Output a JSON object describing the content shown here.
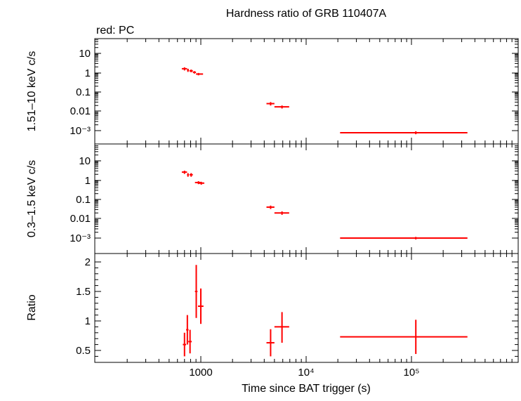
{
  "chart_data": {
    "type": "scatter",
    "title": "Hardness ratio of GRB 110407A",
    "subtitle": "red: PC",
    "xlabel": "Time since BAT trigger (s)",
    "x_scale": "log",
    "xlim": [
      100,
      900000
    ],
    "x_tick_labels": [
      "1000",
      "10⁴",
      "10⁵"
    ],
    "series_color": "#ff0000",
    "panels": [
      {
        "ylabel": "1.51–10 keV c/s",
        "y_scale": "log",
        "ylim": [
          0.00017,
          50
        ],
        "y_tick_labels": [
          "10",
          "1",
          "0.1",
          "0.01",
          "10⁻³"
        ],
        "points": [
          {
            "x": 700,
            "xlo": 660,
            "xhi": 740,
            "y": 1.6,
            "ylo": 1.3,
            "yhi": 1.9
          },
          {
            "x": 755,
            "xlo": 740,
            "xhi": 770,
            "y": 1.35,
            "ylo": 1.1,
            "yhi": 1.6
          },
          {
            "x": 810,
            "xlo": 780,
            "xhi": 840,
            "y": 1.25,
            "ylo": 1.05,
            "yhi": 1.45
          },
          {
            "x": 870,
            "xlo": 840,
            "xhi": 900,
            "y": 1.05,
            "ylo": 0.9,
            "yhi": 1.2
          },
          {
            "x": 950,
            "xlo": 900,
            "xhi": 1050,
            "y": 0.85,
            "ylo": 0.73,
            "yhi": 0.97
          },
          {
            "x": 4600,
            "xlo": 4200,
            "xhi": 5000,
            "y": 0.025,
            "ylo": 0.02,
            "yhi": 0.03
          },
          {
            "x": 5900,
            "xlo": 5000,
            "xhi": 6900,
            "y": 0.017,
            "ylo": 0.014,
            "yhi": 0.02
          },
          {
            "x": 110000,
            "xlo": 21000,
            "xhi": 340000,
            "y": 0.00078,
            "ylo": 0.00065,
            "yhi": 0.00092
          }
        ]
      },
      {
        "ylabel": "0.3–1.5 keV c/s",
        "y_scale": "log",
        "ylim": [
          0.00017,
          30
        ],
        "y_tick_labels": [
          "10",
          "1",
          "0.1",
          "0.01",
          "10⁻³"
        ],
        "points": [
          {
            "x": 700,
            "xlo": 660,
            "xhi": 740,
            "y": 2.6,
            "ylo": 2.1,
            "yhi": 3.1
          },
          {
            "x": 755,
            "xlo": 740,
            "xhi": 770,
            "y": 1.9,
            "ylo": 1.5,
            "yhi": 2.3
          },
          {
            "x": 810,
            "xlo": 780,
            "xhi": 840,
            "y": 1.9,
            "ylo": 1.5,
            "yhi": 2.3
          },
          {
            "x": 950,
            "xlo": 880,
            "xhi": 1010,
            "y": 0.75,
            "ylo": 0.62,
            "yhi": 0.88
          },
          {
            "x": 1010,
            "xlo": 940,
            "xhi": 1080,
            "y": 0.7,
            "ylo": 0.58,
            "yhi": 0.82
          },
          {
            "x": 4600,
            "xlo": 4200,
            "xhi": 5000,
            "y": 0.04,
            "ylo": 0.032,
            "yhi": 0.048
          },
          {
            "x": 5900,
            "xlo": 5000,
            "xhi": 6900,
            "y": 0.02,
            "ylo": 0.016,
            "yhi": 0.024
          },
          {
            "x": 110000,
            "xlo": 21000,
            "xhi": 340000,
            "y": 0.001,
            "ylo": 0.00085,
            "yhi": 0.00115
          }
        ]
      },
      {
        "ylabel": "Ratio",
        "y_scale": "linear",
        "ylim": [
          0.3,
          2.1
        ],
        "y_tick_labels": [
          "2",
          "1.5",
          "1",
          "0.5"
        ],
        "y_tick_values": [
          2,
          1.5,
          1,
          0.5
        ],
        "points": [
          {
            "x": 700,
            "xlo": 675,
            "xhi": 725,
            "y": 0.6,
            "ylo": 0.4,
            "yhi": 0.8
          },
          {
            "x": 745,
            "xlo": 725,
            "xhi": 765,
            "y": 0.85,
            "ylo": 0.6,
            "yhi": 1.1
          },
          {
            "x": 790,
            "xlo": 760,
            "xhi": 820,
            "y": 0.65,
            "ylo": 0.45,
            "yhi": 0.85
          },
          {
            "x": 905,
            "xlo": 880,
            "xhi": 930,
            "y": 1.5,
            "ylo": 1.05,
            "yhi": 1.95
          },
          {
            "x": 1000,
            "xlo": 940,
            "xhi": 1060,
            "y": 1.25,
            "ylo": 0.95,
            "yhi": 1.55
          },
          {
            "x": 4600,
            "xlo": 4200,
            "xhi": 5000,
            "y": 0.63,
            "ylo": 0.4,
            "yhi": 0.86
          },
          {
            "x": 5900,
            "xlo": 5000,
            "xhi": 6900,
            "y": 0.9,
            "ylo": 0.63,
            "yhi": 1.15
          },
          {
            "x": 110000,
            "xlo": 21000,
            "xhi": 340000,
            "y": 0.73,
            "ylo": 0.44,
            "yhi": 1.02
          }
        ]
      }
    ]
  }
}
